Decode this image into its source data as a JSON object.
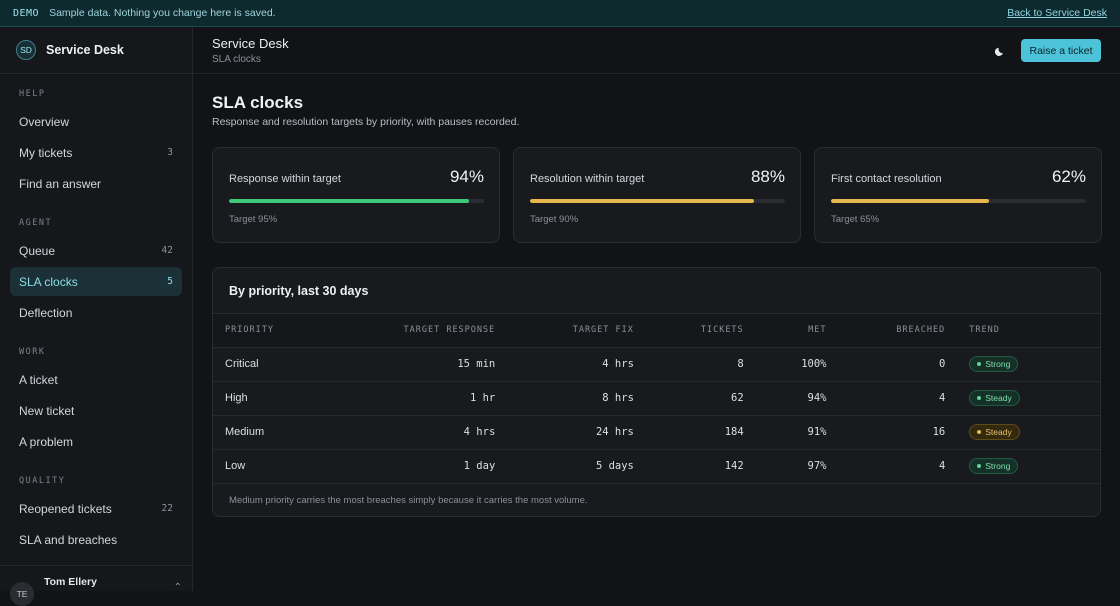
{
  "banner": {
    "tag": "DEMO",
    "message": "Sample data. Nothing you change here is saved.",
    "back_link": "Back to Service Desk"
  },
  "brand": {
    "initials": "SD",
    "name": "Service Desk"
  },
  "sidebar": {
    "sections": [
      {
        "label": "HELP",
        "items": [
          {
            "label": "Overview",
            "count": ""
          },
          {
            "label": "My tickets",
            "count": "3"
          },
          {
            "label": "Find an answer",
            "count": ""
          }
        ]
      },
      {
        "label": "AGENT",
        "items": [
          {
            "label": "Queue",
            "count": "42"
          },
          {
            "label": "SLA clocks",
            "count": "5",
            "active": true
          },
          {
            "label": "Deflection",
            "count": ""
          }
        ]
      },
      {
        "label": "WORK",
        "items": [
          {
            "label": "A ticket",
            "count": ""
          },
          {
            "label": "New ticket",
            "count": ""
          },
          {
            "label": "A problem",
            "count": ""
          }
        ]
      },
      {
        "label": "QUALITY",
        "items": [
          {
            "label": "Reopened tickets",
            "count": "22"
          },
          {
            "label": "SLA and breaches",
            "count": ""
          }
        ]
      }
    ],
    "user": {
      "initials": "TE",
      "name": "Tom Ellery"
    }
  },
  "topbar": {
    "title": "Service Desk",
    "subtitle": "SLA clocks",
    "theme_icon": "moon-icon",
    "raise_label": "Raise a ticket"
  },
  "page": {
    "title": "SLA clocks",
    "subtitle": "Response and resolution targets by priority, with pauses recorded."
  },
  "metrics": [
    {
      "label": "Response within target",
      "value": "94%",
      "progress": 0.94,
      "target": "Target 95%",
      "color": "#3ec97a"
    },
    {
      "label": "Resolution within target",
      "value": "88%",
      "progress": 0.88,
      "target": "Target 90%",
      "color": "#e8b54e"
    },
    {
      "label": "First contact resolution",
      "value": "62%",
      "progress": 0.62,
      "target": "Target 65%",
      "color": "#e8b54e"
    }
  ],
  "table": {
    "title": "By priority, last 30 days",
    "columns": [
      "PRIORITY",
      "TARGET RESPONSE",
      "TARGET FIX",
      "TICKETS",
      "MET",
      "BREACHED",
      "TREND"
    ],
    "rows": [
      {
        "priority": "Critical",
        "target_response": "15 min",
        "target_fix": "4 hrs",
        "tickets": "8",
        "met": "100%",
        "breached": "0",
        "trend": "Strong",
        "trend_kind": "good"
      },
      {
        "priority": "High",
        "target_response": "1 hr",
        "target_fix": "8 hrs",
        "tickets": "62",
        "met": "94%",
        "breached": "4",
        "trend": "Steady",
        "trend_kind": "good"
      },
      {
        "priority": "Medium",
        "target_response": "4 hrs",
        "target_fix": "24 hrs",
        "tickets": "184",
        "met": "91%",
        "breached": "16",
        "trend": "Steady",
        "trend_kind": "warn"
      },
      {
        "priority": "Low",
        "target_response": "1 day",
        "target_fix": "5 days",
        "tickets": "142",
        "met": "97%",
        "breached": "4",
        "trend": "Strong",
        "trend_kind": "good"
      }
    ],
    "footnote": "Medium priority carries the most breaches simply because it carries the most volume."
  }
}
